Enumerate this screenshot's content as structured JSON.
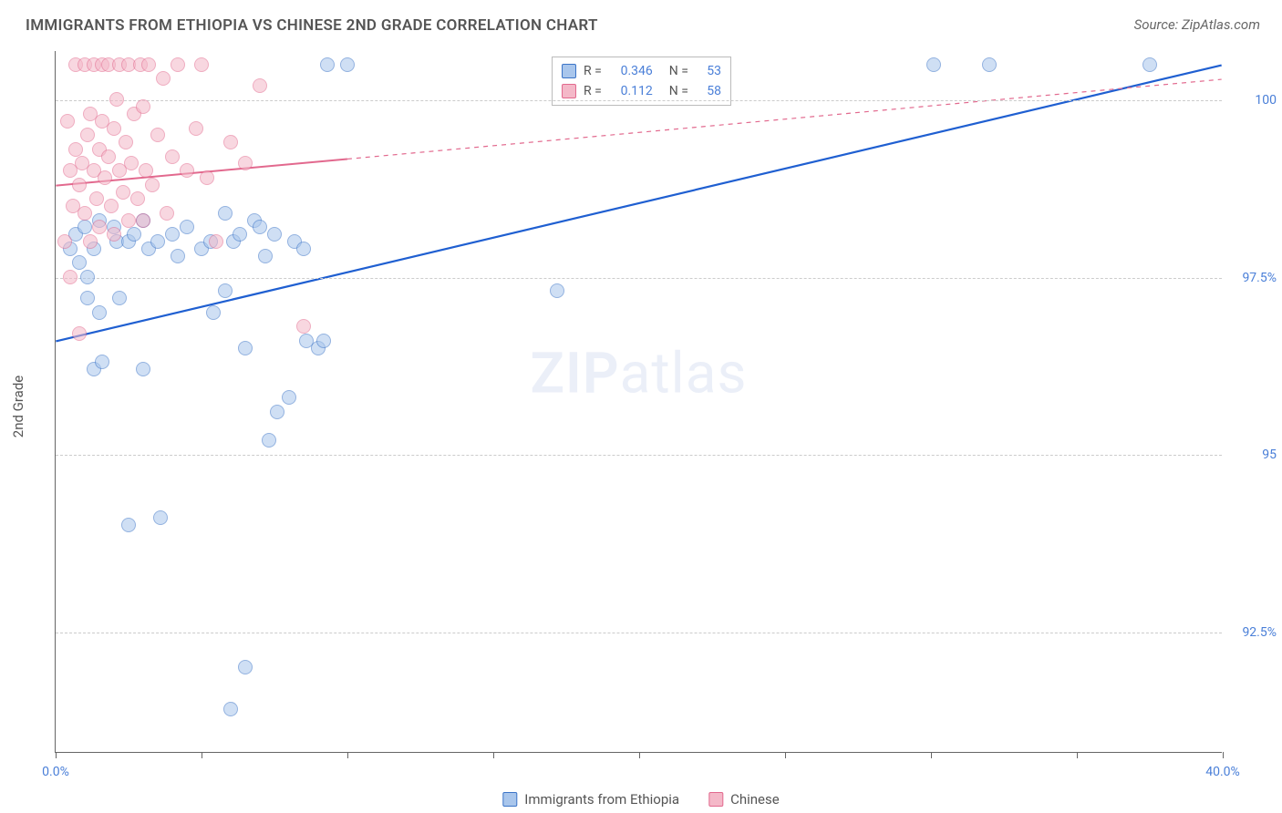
{
  "title": "IMMIGRANTS FROM ETHIOPIA VS CHINESE 2ND GRADE CORRELATION CHART",
  "source": "Source: ZipAtlas.com",
  "ylabel": "2nd Grade",
  "watermark_a": "ZIP",
  "watermark_b": "atlas",
  "chart": {
    "type": "scatter",
    "xlim": [
      0,
      40
    ],
    "ylim": [
      90.8,
      100.7
    ],
    "x_ticks": [
      0,
      5,
      10,
      15,
      20,
      25,
      30,
      35,
      40
    ],
    "x_tick_labels": {
      "0": "0.0%",
      "40": "40.0%"
    },
    "y_ticks": [
      92.5,
      95.0,
      97.5,
      100.0
    ],
    "y_tick_labels": {
      "92.5": "92.5%",
      "95.0": "95.0%",
      "97.5": "97.5%",
      "100.0": "100.0%"
    },
    "grid_color": "#cccccc",
    "background_color": "#ffffff",
    "marker_radius": 8,
    "marker_opacity": 0.55,
    "marker_stroke_width": 1.2,
    "series": [
      {
        "name": "Immigrants from Ethiopia",
        "legend_label": "Immigrants from Ethiopia",
        "fill": "#a9c6ec",
        "stroke": "#3b74c7",
        "trend_color": "#1f5fd1",
        "trend_width": 2.2,
        "R": "0.346",
        "N": "53",
        "trend": {
          "x1": 0,
          "y1": 96.6,
          "x2": 40,
          "y2": 100.5,
          "solid_until_x": 40
        },
        "points": [
          [
            0.5,
            97.9
          ],
          [
            0.7,
            98.1
          ],
          [
            0.8,
            97.7
          ],
          [
            1.0,
            98.2
          ],
          [
            1.1,
            97.2
          ],
          [
            1.1,
            97.5
          ],
          [
            1.3,
            97.9
          ],
          [
            1.3,
            96.2
          ],
          [
            1.5,
            98.3
          ],
          [
            1.5,
            97.0
          ],
          [
            1.6,
            96.3
          ],
          [
            2.0,
            98.2
          ],
          [
            2.1,
            98.0
          ],
          [
            2.2,
            97.2
          ],
          [
            2.5,
            98.0
          ],
          [
            2.5,
            94.0
          ],
          [
            2.7,
            98.1
          ],
          [
            3.0,
            98.3
          ],
          [
            3.0,
            96.2
          ],
          [
            3.2,
            97.9
          ],
          [
            3.5,
            98.0
          ],
          [
            3.6,
            94.1
          ],
          [
            4.0,
            98.1
          ],
          [
            4.2,
            97.8
          ],
          [
            4.5,
            98.2
          ],
          [
            5.0,
            97.9
          ],
          [
            5.3,
            98.0
          ],
          [
            5.4,
            97.0
          ],
          [
            5.8,
            98.4
          ],
          [
            5.8,
            97.3
          ],
          [
            6.0,
            91.4
          ],
          [
            6.1,
            98.0
          ],
          [
            6.3,
            98.1
          ],
          [
            6.5,
            96.5
          ],
          [
            6.5,
            92.0
          ],
          [
            6.8,
            98.3
          ],
          [
            7.0,
            98.2
          ],
          [
            7.2,
            97.8
          ],
          [
            7.3,
            95.2
          ],
          [
            7.5,
            98.1
          ],
          [
            7.6,
            95.6
          ],
          [
            8.0,
            95.8
          ],
          [
            8.2,
            98.0
          ],
          [
            8.5,
            97.9
          ],
          [
            8.6,
            96.6
          ],
          [
            9.0,
            96.5
          ],
          [
            9.2,
            96.6
          ],
          [
            9.3,
            100.5
          ],
          [
            10.0,
            100.5
          ],
          [
            17.2,
            97.3
          ],
          [
            30.1,
            100.5
          ],
          [
            32.0,
            100.5
          ],
          [
            37.5,
            100.5
          ]
        ]
      },
      {
        "name": "Chinese",
        "legend_label": "Chinese",
        "fill": "#f4b8c8",
        "stroke": "#e2698e",
        "trend_color": "#e2698e",
        "trend_width": 2.0,
        "R": "0.112",
        "N": "58",
        "trend": {
          "x1": 0,
          "y1": 98.8,
          "x2": 40,
          "y2": 100.3,
          "solid_until_x": 10
        },
        "points": [
          [
            0.3,
            98.0
          ],
          [
            0.4,
            99.7
          ],
          [
            0.5,
            99.0
          ],
          [
            0.5,
            97.5
          ],
          [
            0.6,
            98.5
          ],
          [
            0.7,
            99.3
          ],
          [
            0.7,
            100.5
          ],
          [
            0.8,
            98.8
          ],
          [
            0.8,
            96.7
          ],
          [
            0.9,
            99.1
          ],
          [
            1.0,
            100.5
          ],
          [
            1.0,
            98.4
          ],
          [
            1.1,
            99.5
          ],
          [
            1.2,
            98.0
          ],
          [
            1.2,
            99.8
          ],
          [
            1.3,
            99.0
          ],
          [
            1.3,
            100.5
          ],
          [
            1.4,
            98.6
          ],
          [
            1.5,
            99.3
          ],
          [
            1.5,
            98.2
          ],
          [
            1.6,
            99.7
          ],
          [
            1.6,
            100.5
          ],
          [
            1.7,
            98.9
          ],
          [
            1.8,
            99.2
          ],
          [
            1.8,
            100.5
          ],
          [
            1.9,
            98.5
          ],
          [
            2.0,
            99.6
          ],
          [
            2.0,
            98.1
          ],
          [
            2.1,
            100.0
          ],
          [
            2.2,
            99.0
          ],
          [
            2.2,
            100.5
          ],
          [
            2.3,
            98.7
          ],
          [
            2.4,
            99.4
          ],
          [
            2.5,
            100.5
          ],
          [
            2.5,
            98.3
          ],
          [
            2.6,
            99.1
          ],
          [
            2.7,
            99.8
          ],
          [
            2.8,
            98.6
          ],
          [
            2.9,
            100.5
          ],
          [
            3.0,
            99.9
          ],
          [
            3.1,
            99.0
          ],
          [
            3.2,
            100.5
          ],
          [
            3.3,
            98.8
          ],
          [
            3.5,
            99.5
          ],
          [
            3.7,
            100.3
          ],
          [
            3.8,
            98.4
          ],
          [
            4.0,
            99.2
          ],
          [
            4.2,
            100.5
          ],
          [
            4.5,
            99.0
          ],
          [
            4.8,
            99.6
          ],
          [
            5.0,
            100.5
          ],
          [
            5.2,
            98.9
          ],
          [
            5.5,
            98.0
          ],
          [
            6.0,
            99.4
          ],
          [
            6.5,
            99.1
          ],
          [
            7.0,
            100.2
          ],
          [
            8.5,
            96.8
          ],
          [
            3.0,
            98.3
          ]
        ]
      }
    ]
  },
  "corr_legend_labels": {
    "R": "R =",
    "N": "N ="
  }
}
